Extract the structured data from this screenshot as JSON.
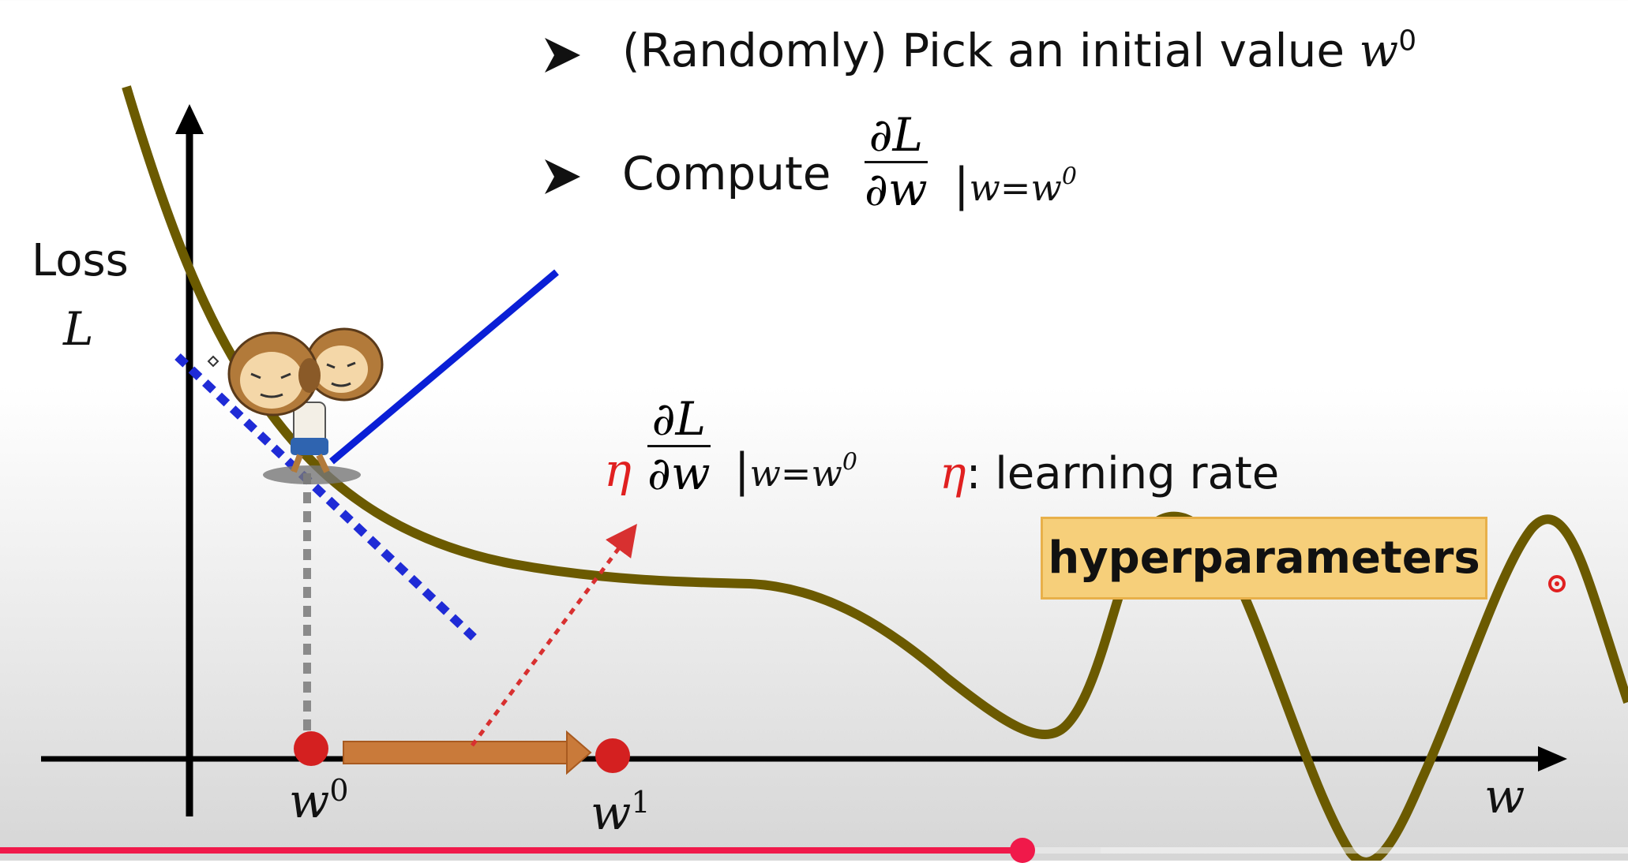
{
  "bullets": [
    {
      "text": "(Randomly) Pick an initial value ",
      "var": "w",
      "sup": "0"
    },
    {
      "text": "Compute"
    }
  ],
  "derivative": {
    "num": "∂L",
    "den": "∂w",
    "eval": "w=w",
    "eval_sup": "0"
  },
  "step": {
    "eta": "η",
    "num": "∂L",
    "den": "∂w",
    "eval": "w=w",
    "eval_sup": "0"
  },
  "learning_rate_note": {
    "eta": "η",
    "text": ": learning rate"
  },
  "hyperparameters_label": "hyperparameters",
  "axes": {
    "y_label_line1": "Loss",
    "y_label_line2": "L",
    "x_label": "w"
  },
  "points": [
    {
      "label": "w",
      "sup": "0"
    },
    {
      "label": "w",
      "sup": "1"
    }
  ],
  "colors": {
    "curve": "#6b5a00",
    "tangent": "#1f2bd6",
    "gradient_arrow": "#0a1fd6",
    "step_arrow": "#c97a3a",
    "dotted_red": "#d83030",
    "dotted_gray": "#8a8a8a",
    "point": "#d42020",
    "hyper_fill": "#f6cf7a",
    "progress": "#f0194a"
  },
  "video_progress": {
    "played_fraction": 0.628,
    "buffered_fraction": 0.676
  }
}
